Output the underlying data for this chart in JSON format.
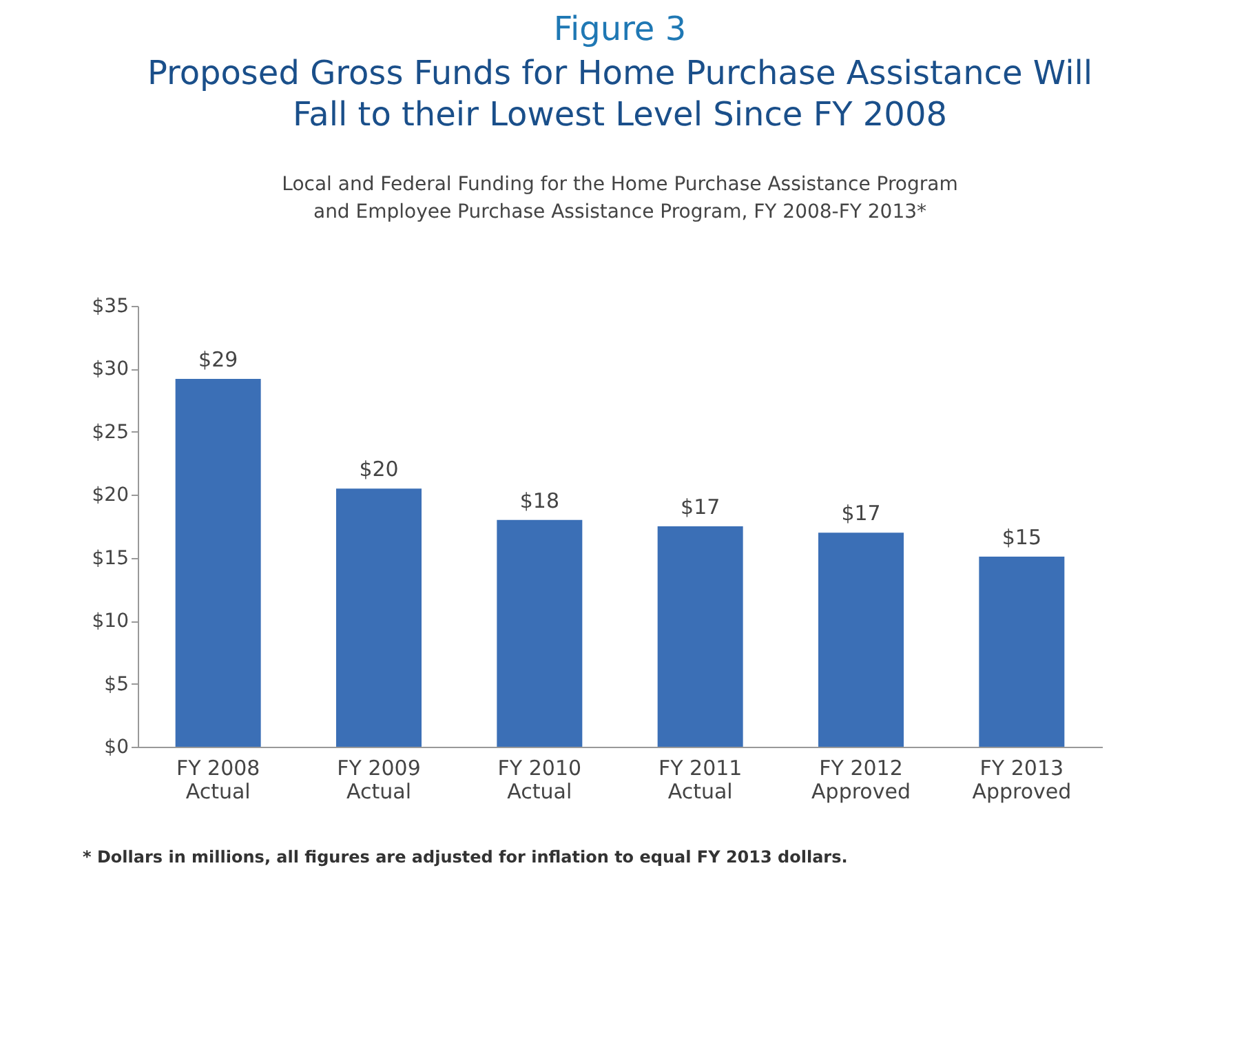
{
  "chart_data": {
    "type": "bar",
    "title": [
      "Proposed Gross Funds for Home Purchase Assistance Will",
      "Fall to their Lowest Level Since FY 2008"
    ],
    "subtitle": [
      "Local and Federal Funding for the Home Purchase Assistance Program",
      "and Employee Purchase Assistance Program, FY 2008-FY 2013*"
    ],
    "annotations": [
      "Figure 3",
      "* Dollars in millions, all figures are adjusted for inflation to equal FY 2013 dollars."
    ],
    "categories": [
      "FY 2008\nActual",
      "FY 2009\nActual",
      "FY 2010\nActual",
      "FY 2011\nActual",
      "FY 2012\nApproved",
      "FY 2013\nApproved"
    ],
    "values": [
      29.2,
      20.5,
      18.0,
      17.5,
      17.0,
      15.1
    ],
    "value_labels": [
      "$29",
      "$20",
      "$18",
      "$17",
      "$17",
      "$15"
    ],
    "color": "#3b6fb6",
    "ylim": [
      0,
      35
    ],
    "yticks": [
      {
        "value": 0,
        "label": "$0"
      },
      {
        "value": 5,
        "label": "$5"
      },
      {
        "value": 10,
        "label": "$10"
      },
      {
        "value": 15,
        "label": "$15"
      },
      {
        "value": 20,
        "label": "$20"
      },
      {
        "value": 25,
        "label": "$25"
      },
      {
        "value": 30,
        "label": "$30"
      },
      {
        "value": 35,
        "label": "$35"
      }
    ],
    "grid": false
  }
}
